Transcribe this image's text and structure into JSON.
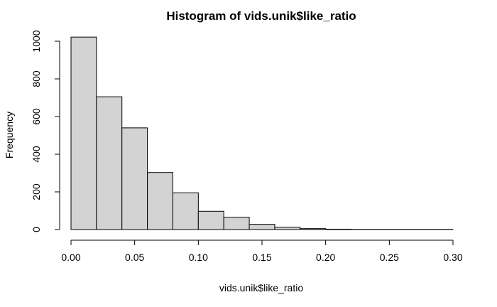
{
  "chart_data": {
    "type": "bar",
    "title": "Histogram of vids.unik$like_ratio",
    "xlabel": "vids.unik$like_ratio",
    "ylabel": "Frequency",
    "xlim": [
      0,
      0.3
    ],
    "ylim": [
      0,
      1000
    ],
    "x_ticks": [
      "0.00",
      "0.05",
      "0.10",
      "0.15",
      "0.20",
      "0.25",
      "0.30"
    ],
    "y_ticks": [
      "0",
      "200",
      "400",
      "600",
      "800",
      "1000"
    ],
    "bin_width": 0.02,
    "bins": [
      {
        "from": 0.0,
        "to": 0.02,
        "count": 1022
      },
      {
        "from": 0.02,
        "to": 0.04,
        "count": 705
      },
      {
        "from": 0.04,
        "to": 0.06,
        "count": 540
      },
      {
        "from": 0.06,
        "to": 0.08,
        "count": 303
      },
      {
        "from": 0.08,
        "to": 0.1,
        "count": 195
      },
      {
        "from": 0.1,
        "to": 0.12,
        "count": 97
      },
      {
        "from": 0.12,
        "to": 0.14,
        "count": 65
      },
      {
        "from": 0.14,
        "to": 0.16,
        "count": 28
      },
      {
        "from": 0.16,
        "to": 0.18,
        "count": 12
      },
      {
        "from": 0.18,
        "to": 0.2,
        "count": 5
      },
      {
        "from": 0.2,
        "to": 0.22,
        "count": 2
      },
      {
        "from": 0.22,
        "to": 0.24,
        "count": 1
      },
      {
        "from": 0.24,
        "to": 0.26,
        "count": 1
      },
      {
        "from": 0.26,
        "to": 0.28,
        "count": 1
      },
      {
        "from": 0.28,
        "to": 0.3,
        "count": 1
      }
    ],
    "colors": {
      "bar_fill": "#d3d3d3",
      "bar_stroke": "#000000"
    },
    "grid": false,
    "legend": "none"
  }
}
